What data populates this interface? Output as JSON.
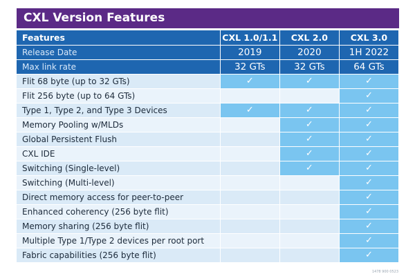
{
  "title": "CXL Version Features",
  "header": {
    "features_label": "Features",
    "versions": [
      "CXL 1.0/1.1",
      "CXL 2.0",
      "CXL 3.0"
    ]
  },
  "meta_rows": [
    {
      "label": "Release Date",
      "values": [
        "2019",
        "2020",
        "1H 2022"
      ]
    },
    {
      "label": "Max link rate",
      "values": [
        "32 GTs",
        "32 GTs",
        "64 GTs"
      ]
    }
  ],
  "check_symbol": "✓",
  "features": [
    {
      "label": "Flit 68 byte (up to 32 GTs)",
      "support": [
        true,
        true,
        true
      ]
    },
    {
      "label": "Flit 256 byte (up to 64 GTs)",
      "support": [
        false,
        false,
        true
      ]
    },
    {
      "label": "Type 1, Type 2, and Type 3 Devices",
      "support": [
        true,
        true,
        true
      ]
    },
    {
      "label": "Memory Pooling w/MLDs",
      "support": [
        false,
        true,
        true
      ]
    },
    {
      "label": "Global Persistent Flush",
      "support": [
        false,
        true,
        true
      ]
    },
    {
      "label": "CXL IDE",
      "support": [
        false,
        true,
        true
      ]
    },
    {
      "label": "Switching (Single-level)",
      "support": [
        false,
        true,
        true
      ]
    },
    {
      "label": "Switching (Multi-level)",
      "support": [
        false,
        false,
        true
      ]
    },
    {
      "label": "Direct memory access for peer-to-peer",
      "support": [
        false,
        false,
        true
      ]
    },
    {
      "label": "Enhanced coherency (256 byte flit)",
      "support": [
        false,
        false,
        true
      ]
    },
    {
      "label": "Memory sharing (256 byte flit)",
      "support": [
        false,
        false,
        true
      ]
    },
    {
      "label": "Multiple Type 1/Type 2 devices per root port",
      "support": [
        false,
        false,
        true
      ]
    },
    {
      "label": "Fabric capabilities (256 byte flit)",
      "support": [
        false,
        false,
        true
      ]
    }
  ],
  "footnote": "1478 900 0523",
  "colors": {
    "title_bg": "#5b2a86",
    "header_bg": "#1e66b0",
    "row_odd": "#daeaf7",
    "row_even": "#eaf3fb",
    "supported": "#7ac5f0"
  }
}
